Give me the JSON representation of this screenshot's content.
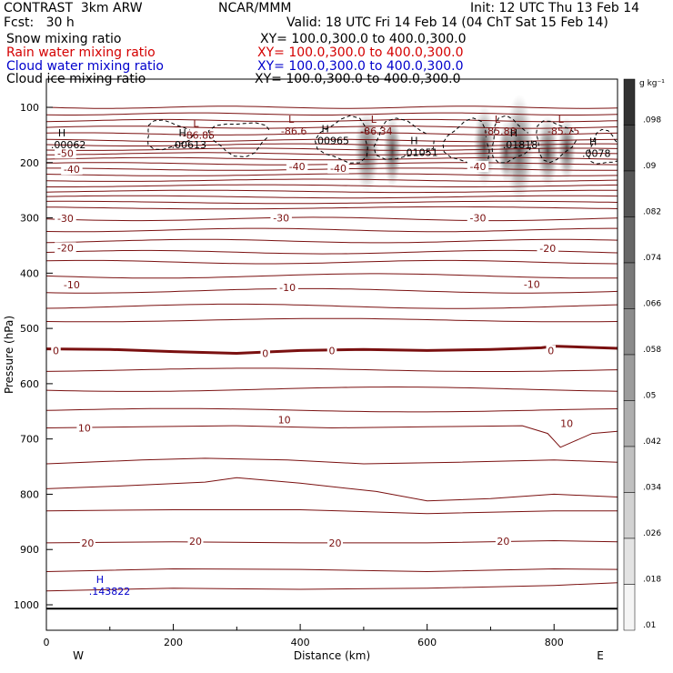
{
  "header": {
    "model": "CONTRAST  3km ARW",
    "center": "NCAR/MMM",
    "init": "Init: 12 UTC Thu 13 Feb 14",
    "fcst": "Fcst:   30 h",
    "valid": "Valid: 18 UTC Fri 14 Feb 14 (04 ChT Sat 15 Feb 14)",
    "fields": [
      {
        "name": "Snow mixing ratio",
        "xy": "XY= 100.0,300.0 to 400.0,300.0",
        "color": "#000000"
      },
      {
        "name": "Rain water mixing ratio",
        "xy": "XY= 100.0,300.0 to 400.0,300.0",
        "color": "#d40000"
      },
      {
        "name": "Cloud water mixing ratio",
        "xy": "XY= 100.0,300.0 to 400.0,300.0",
        "color": "#0000cc"
      },
      {
        "name": "Cloud ice mixing ratio",
        "xy": "XY= 100.0,300.0 to 400.0,300.0",
        "color": "#000000"
      }
    ]
  },
  "chart_data": {
    "type": "cross-section contour",
    "xlabel": "Distance (km)",
    "ylabel": "Pressure (hPa)",
    "xlim": [
      0,
      900
    ],
    "ylim": [
      1050,
      50
    ],
    "x_ticks": [
      0,
      200,
      400,
      600,
      800
    ],
    "y_ticks": [
      100,
      200,
      300,
      400,
      500,
      600,
      700,
      800,
      900,
      1000
    ],
    "x_end_labels": {
      "left": "W",
      "right": "E"
    },
    "colorbar": {
      "unit": "g kg⁻¹",
      "ticks": [
        ".098",
        ".09",
        ".082",
        ".074",
        ".066",
        ".058",
        ".05",
        ".042",
        ".034",
        ".026",
        ".018",
        ".01"
      ]
    },
    "temperature_labels": [
      {
        "x": 30,
        "p": 183,
        "text": "-50"
      },
      {
        "x": 40,
        "p": 212,
        "text": "-40"
      },
      {
        "x": 395,
        "p": 207,
        "text": "-40"
      },
      {
        "x": 460,
        "p": 210,
        "text": "-40"
      },
      {
        "x": 680,
        "p": 207,
        "text": "-40"
      },
      {
        "x": 30,
        "p": 301,
        "text": "-30"
      },
      {
        "x": 370,
        "p": 300,
        "text": "-30"
      },
      {
        "x": 680,
        "p": 300,
        "text": "-30"
      },
      {
        "x": 30,
        "p": 354,
        "text": "-20"
      },
      {
        "x": 790,
        "p": 355,
        "text": "-20"
      },
      {
        "x": 40,
        "p": 421,
        "text": "-10"
      },
      {
        "x": 380,
        "p": 426,
        "text": "-10"
      },
      {
        "x": 765,
        "p": 420,
        "text": "-10"
      },
      {
        "x": 15,
        "p": 540,
        "text": "0"
      },
      {
        "x": 345,
        "p": 545,
        "text": "0"
      },
      {
        "x": 450,
        "p": 540,
        "text": "0"
      },
      {
        "x": 795,
        "p": 540,
        "text": "0"
      },
      {
        "x": 60,
        "p": 680,
        "text": "10"
      },
      {
        "x": 375,
        "p": 665,
        "text": "10"
      },
      {
        "x": 820,
        "p": 672,
        "text": "10"
      },
      {
        "x": 65,
        "p": 888,
        "text": "20"
      },
      {
        "x": 235,
        "p": 885,
        "text": "20"
      },
      {
        "x": 455,
        "p": 888,
        "text": "20"
      },
      {
        "x": 720,
        "p": 885,
        "text": "20"
      }
    ],
    "temperature_lows": [
      {
        "x": 240,
        "p": 155,
        "label": "L",
        "value": "-86.85"
      },
      {
        "x": 390,
        "p": 148,
        "label": "L",
        "value": "-86.6"
      },
      {
        "x": 520,
        "p": 148,
        "label": "L",
        "value": "-86.34"
      },
      {
        "x": 715,
        "p": 148,
        "label": "L",
        "value": "-85.88"
      },
      {
        "x": 815,
        "p": 148,
        "label": "L",
        "value": "-85.75"
      }
    ],
    "mixing_highs": [
      {
        "x": 30,
        "p": 172,
        "label": "H",
        "value": ".00062",
        "color": "#000000"
      },
      {
        "x": 220,
        "p": 172,
        "label": "H",
        "value": ".00613",
        "color": "#000000"
      },
      {
        "x": 445,
        "p": 165,
        "label": "H",
        "value": ".00965",
        "color": "#000000"
      },
      {
        "x": 585,
        "p": 186,
        "label": "H",
        "value": ".01051",
        "color": "#000000"
      },
      {
        "x": 742,
        "p": 172,
        "label": "H",
        "value": ".01818",
        "color": "#000000"
      },
      {
        "x": 867,
        "p": 188,
        "label": "H",
        "value": ".0078",
        "color": "#000000"
      },
      {
        "x": 90,
        "p": 980,
        "label": "H",
        "value": ".143822",
        "color": "#0000cc"
      }
    ]
  }
}
